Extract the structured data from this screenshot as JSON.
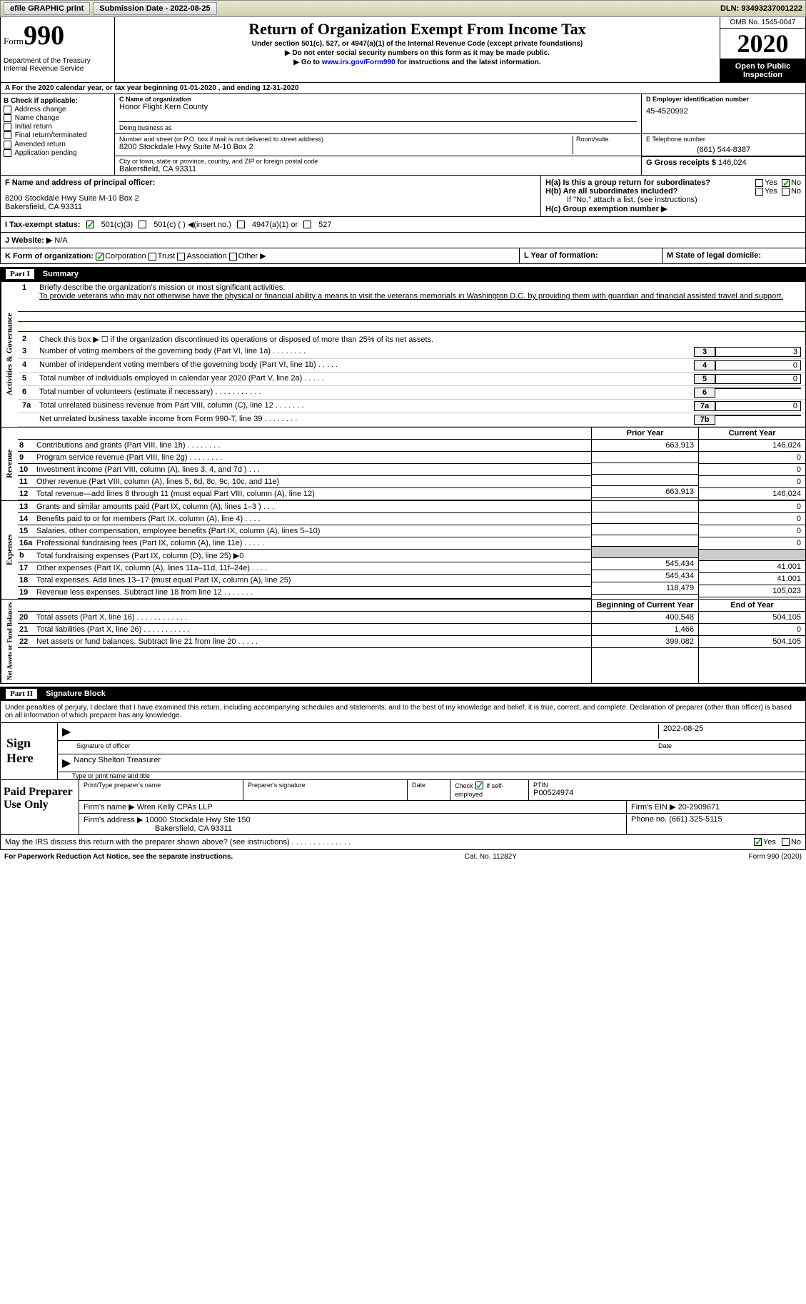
{
  "topbar": {
    "efile": "efile GRAPHIC print",
    "submission_label": "Submission Date - 2022-08-25",
    "dln_label": "DLN: 93493237001222"
  },
  "header": {
    "form_label": "Form",
    "form_number": "990",
    "dept": "Department of the Treasury\nInternal Revenue Service",
    "title": "Return of Organization Exempt From Income Tax",
    "subtitle": "Under section 501(c), 527, or 4947(a)(1) of the Internal Revenue Code (except private foundations)",
    "note1": "▶ Do not enter social security numbers on this form as it may be made public.",
    "note2_prefix": "▶ Go to ",
    "note2_link": "www.irs.gov/Form990",
    "note2_suffix": " for instructions and the latest information.",
    "omb": "OMB No. 1545-0047",
    "year": "2020",
    "inspect": "Open to Public Inspection"
  },
  "row_a": "For the 2020 calendar year, or tax year beginning 01-01-2020    , and ending 12-31-2020",
  "section_b": {
    "label": "B Check if applicable:",
    "opts": [
      "Address change",
      "Name change",
      "Initial return",
      "Final return/terminated",
      "Amended return",
      "Application pending"
    ]
  },
  "section_c": {
    "name_label": "C Name of organization",
    "name": "Honor Flight Kern County",
    "dba_label": "Doing business as",
    "addr_label": "Number and street (or P.O. box if mail is not delivered to street address)",
    "room_label": "Room/suite",
    "addr": "8200 Stockdale Hwy Suite M-10 Box 2",
    "city_label": "City or town, state or province, country, and ZIP or foreign postal code",
    "city": "Bakersfield, CA  93311"
  },
  "section_d": {
    "label": "D Employer identification number",
    "value": "45-4520992"
  },
  "section_e": {
    "label": "E Telephone number",
    "value": "(661) 544-8387"
  },
  "section_g": {
    "label": "G Gross receipts $",
    "value": "146,024"
  },
  "section_f": {
    "label": "F  Name and address of principal officer:",
    "addr1": "8200 Stockdale Hwy Suite M-10 Box 2",
    "addr2": "Bakersfield, CA  93311"
  },
  "section_h": {
    "ha": "H(a)  Is this a group return for subordinates?",
    "hb": "H(b)  Are all subordinates included?",
    "hb_note": "If \"No,\" attach a list. (see instructions)",
    "hc": "H(c)  Group exemption number ▶",
    "yes": "Yes",
    "no": "No"
  },
  "row_i": {
    "label": "I   Tax-exempt status:",
    "o1": "501(c)(3)",
    "o2": "501(c) (  ) ◀(insert no.)",
    "o3": "4947(a)(1) or",
    "o4": "527"
  },
  "row_j": {
    "label": "J   Website: ▶",
    "value": "N/A"
  },
  "row_k": {
    "label": "K Form of organization:",
    "o1": "Corporation",
    "o2": "Trust",
    "o3": "Association",
    "o4": "Other ▶"
  },
  "row_l": "L Year of formation:",
  "row_m": "M State of legal domicile:",
  "part1": {
    "num": "Part I",
    "title": "Summary"
  },
  "summary": {
    "line1_label": "Briefly describe the organization's mission or most significant activities:",
    "line1_text": "To provide veterans who may not otherwise have the physical or financial ability a means to visit the veterans memorials in Washington D.C. by providing them with guardian and financial assisted travel and support.",
    "line2": "Check this box ▶ ☐  if the organization discontinued its operations or disposed of more than 25% of its net assets.",
    "lines_gov": [
      {
        "n": "3",
        "t": "Number of voting members of the governing body (Part VI, line 1a)   .   .   .   .   .   .   .   .",
        "box": "3",
        "v": "3"
      },
      {
        "n": "4",
        "t": "Number of independent voting members of the governing body (Part VI, line 1b)   .   .   .   .   .",
        "box": "4",
        "v": "0"
      },
      {
        "n": "5",
        "t": "Total number of individuals employed in calendar year 2020 (Part V, line 2a)   .   .   .   .   .",
        "box": "5",
        "v": "0"
      },
      {
        "n": "6",
        "t": "Total number of volunteers (estimate if necessary)   .   .   .   .   .   .   .   .   .   .   .",
        "box": "6",
        "v": ""
      },
      {
        "n": "7a",
        "t": "Total unrelated business revenue from Part VIII, column (C), line 12   .   .   .   .   .   .   .",
        "box": "7a",
        "v": "0"
      },
      {
        "n": "",
        "t": "Net unrelated business taxable income from Form 990-T, line 39   .   .   .   .   .   .   .   .",
        "box": "7b",
        "v": ""
      }
    ],
    "col_prior": "Prior Year",
    "col_current": "Current Year",
    "revenue": [
      {
        "n": "8",
        "t": "Contributions and grants (Part VIII, line 1h)   .   .   .   .   .   .   .   .",
        "p": "663,913",
        "c": "146,024"
      },
      {
        "n": "9",
        "t": "Program service revenue (Part VIII, line 2g)   .   .   .   .   .   .   .   .",
        "p": "",
        "c": "0"
      },
      {
        "n": "10",
        "t": "Investment income (Part VIII, column (A), lines 3, 4, and 7d )   .   .   .",
        "p": "",
        "c": "0"
      },
      {
        "n": "11",
        "t": "Other revenue (Part VIII, column (A), lines 5, 6d, 8c, 9c, 10c, and 11e)",
        "p": "",
        "c": "0"
      },
      {
        "n": "12",
        "t": "Total revenue—add lines 8 through 11 (must equal Part VIII, column (A), line 12)",
        "p": "663,913",
        "c": "146,024"
      }
    ],
    "expenses": [
      {
        "n": "13",
        "t": "Grants and similar amounts paid (Part IX, column (A), lines 1–3 )   .   .   .",
        "p": "",
        "c": "0"
      },
      {
        "n": "14",
        "t": "Benefits paid to or for members (Part IX, column (A), line 4)   .   .   .   .",
        "p": "",
        "c": "0"
      },
      {
        "n": "15",
        "t": "Salaries, other compensation, employee benefits (Part IX, column (A), lines 5–10)",
        "p": "",
        "c": "0"
      },
      {
        "n": "16a",
        "t": "Professional fundraising fees (Part IX, column (A), line 11e)   .   .   .   .   .",
        "p": "",
        "c": "0"
      },
      {
        "n": "b",
        "t": "Total fundraising expenses (Part IX, column (D), line 25) ▶0",
        "p": "shade",
        "c": "shade"
      },
      {
        "n": "17",
        "t": "Other expenses (Part IX, column (A), lines 11a–11d, 11f–24e)   .   .   .   .",
        "p": "545,434",
        "c": "41,001"
      },
      {
        "n": "18",
        "t": "Total expenses. Add lines 13–17 (must equal Part IX, column (A), line 25)",
        "p": "545,434",
        "c": "41,001"
      },
      {
        "n": "19",
        "t": "Revenue less expenses. Subtract line 18 from line 12   .   .   .   .   .   .   .",
        "p": "118,479",
        "c": "105,023"
      }
    ],
    "col_begin": "Beginning of Current Year",
    "col_end": "End of Year",
    "netassets": [
      {
        "n": "20",
        "t": "Total assets (Part X, line 16)   .   .   .   .   .   .   .   .   .   .   .   .",
        "p": "400,548",
        "c": "504,105"
      },
      {
        "n": "21",
        "t": "Total liabilities (Part X, line 26)   .   .   .   .   .   .   .   .   .   .   .",
        "p": "1,466",
        "c": "0"
      },
      {
        "n": "22",
        "t": "Net assets or fund balances. Subtract line 21 from line 20   .   .   .   .   .",
        "p": "399,082",
        "c": "504,105"
      }
    ],
    "vtabs": [
      "Activities & Governance",
      "Revenue",
      "Expenses",
      "Net Assets or Fund Balances"
    ]
  },
  "part2": {
    "num": "Part II",
    "title": "Signature Block"
  },
  "sig": {
    "declaration": "Under penalties of perjury, I declare that I have examined this return, including accompanying schedules and statements, and to the best of my knowledge and belief, it is true, correct, and complete. Declaration of preparer (other than officer) is based on all information of which preparer has any knowledge.",
    "sign_here": "Sign Here",
    "sig_officer": "Signature of officer",
    "date": "Date",
    "date_val": "2022-08-25",
    "officer_name": "Nancy Shelton Treasurer",
    "name_label": "Type or print name and title"
  },
  "prep": {
    "label": "Paid Preparer Use Only",
    "h1": "Print/Type preparer's name",
    "h2": "Preparer's signature",
    "h3": "Date",
    "h4a": "Check",
    "h4b": "if self-employed",
    "h5": "PTIN",
    "ptin": "P00524974",
    "firm_label": "Firm's name      ▶",
    "firm": "Wren Kelly CPAs LLP",
    "ein_label": "Firm's EIN ▶",
    "ein": "20-2909671",
    "addr_label": "Firm's address ▶",
    "addr1": "10000 Stockdale Hwy Ste 150",
    "addr2": "Bakersfield, CA  93311",
    "phone_label": "Phone no.",
    "phone": "(661) 325-5115"
  },
  "discuss": {
    "text": "May the IRS discuss this return with the preparer shown above? (see instructions)   .   .   .   .   .   .   .   .   .   .   .   .   .   .",
    "yes": "Yes",
    "no": "No"
  },
  "footer": {
    "left": "For Paperwork Reduction Act Notice, see the separate instructions.",
    "mid": "Cat. No. 11282Y",
    "right": "Form 990 (2020)"
  },
  "colors": {
    "link": "#0000cc",
    "check": "#00aa00"
  }
}
